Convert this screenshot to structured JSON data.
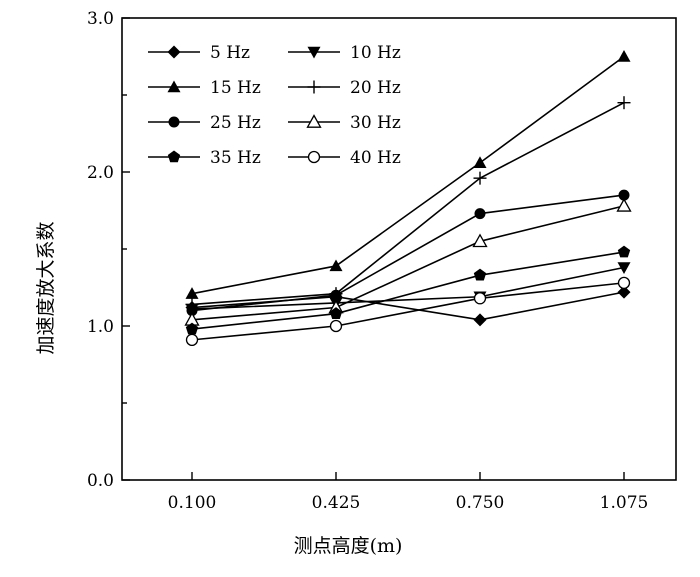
{
  "chart_data": {
    "type": "line",
    "title": "",
    "xlabel": "测点高度(m)",
    "ylabel": "加速度放大系数",
    "categories": [
      "0.100",
      "0.425",
      "0.750",
      "1.075"
    ],
    "ylim": [
      0.0,
      3.0
    ],
    "yticks": [
      "0.0",
      "1.0",
      "2.0",
      "3.0"
    ],
    "grid": false,
    "legend_position": "top-left",
    "series": [
      {
        "name": "5 Hz",
        "marker": "diamond",
        "values": [
          1.12,
          1.19,
          1.04,
          1.22
        ]
      },
      {
        "name": "10 Hz",
        "marker": "triangle-down",
        "values": [
          1.11,
          1.15,
          1.19,
          1.38
        ]
      },
      {
        "name": "15 Hz",
        "marker": "triangle-up",
        "values": [
          1.21,
          1.39,
          2.06,
          2.75
        ]
      },
      {
        "name": "20 Hz",
        "marker": "plus",
        "values": [
          1.14,
          1.21,
          1.96,
          2.45
        ]
      },
      {
        "name": "25 Hz",
        "marker": "circle",
        "values": [
          1.1,
          1.2,
          1.73,
          1.85
        ]
      },
      {
        "name": "30 Hz",
        "marker": "triangle-up-open",
        "values": [
          1.04,
          1.12,
          1.55,
          1.78
        ]
      },
      {
        "name": "35 Hz",
        "marker": "pentagon",
        "values": [
          0.98,
          1.08,
          1.33,
          1.48
        ]
      },
      {
        "name": "40 Hz",
        "marker": "circle-open",
        "values": [
          0.91,
          1.0,
          1.18,
          1.28
        ]
      }
    ]
  }
}
